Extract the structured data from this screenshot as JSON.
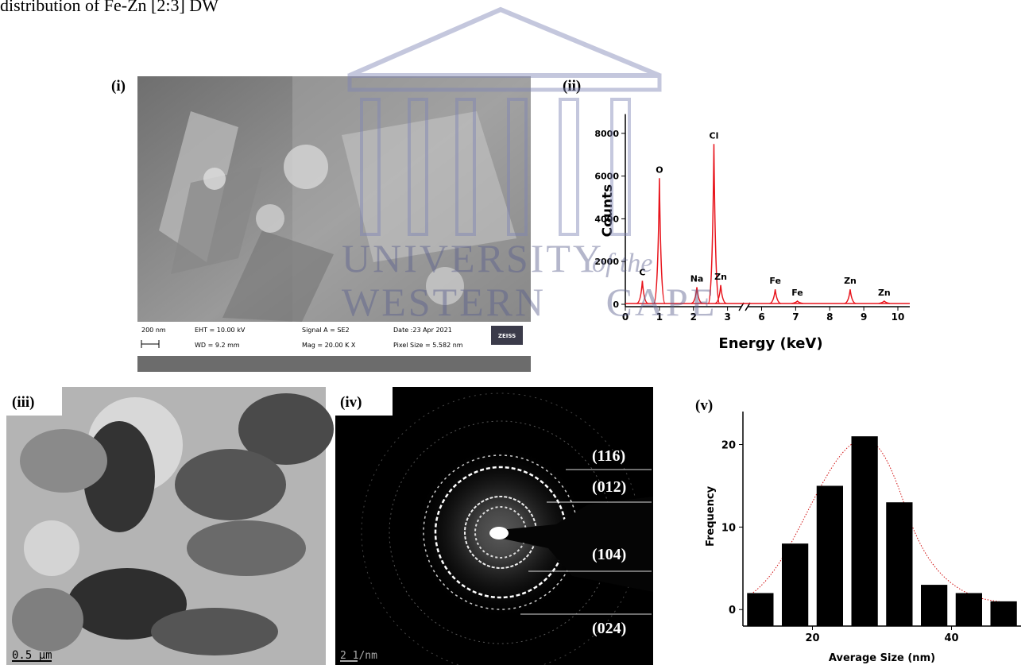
{
  "caption": "distribution of Fe-Zn [2:3] DW",
  "watermark": {
    "line1": "UNIVERSITY",
    "line1_suffix": "of the",
    "line2": "WESTERN CAPE"
  },
  "panels": {
    "i": {
      "label": "(i)",
      "scale_bar": "200 nm",
      "eht": "EHT = 10.00 kV",
      "wd": "WD = 9.2 mm",
      "signal": "Signal A = SE2",
      "mag": "Mag =   20.00 K X",
      "date": "Date :23 Apr 2021",
      "pixel_size": "Pixel Size = 5.582 nm",
      "logo": "ZEISS"
    },
    "iii": {
      "label": "(iii)",
      "scale_bar": "0.5 µm"
    },
    "iv": {
      "label": "(iv)",
      "scale_bar": "2 1/nm",
      "planes": [
        "(116)",
        "(012)",
        "(104)",
        "(024)"
      ]
    }
  },
  "chart_data": [
    {
      "type": "spectrum",
      "panel_label": "(ii)",
      "xlabel": "Energy (keV)",
      "ylabel": "Counts",
      "x": [
        0.5,
        1.0,
        2.1,
        2.6,
        2.8,
        6.4,
        7.05,
        8.6,
        9.6
      ],
      "values": [
        1100,
        5900,
        800,
        7500,
        900,
        700,
        150,
        700,
        150
      ],
      "peak_labels": [
        "C",
        "O",
        "Na",
        "Cl",
        "Zn",
        "Fe",
        "Fe",
        "Zn",
        "Zn"
      ],
      "color": "#e8141c",
      "xlim": [
        0,
        10.35
      ],
      "x_break": [
        3.5,
        5.5
      ],
      "xticks": [
        0,
        1,
        2,
        3,
        6,
        7,
        8,
        9,
        10
      ],
      "ylim": [
        0,
        8900
      ],
      "yticks": [
        0,
        2000,
        4000,
        6000,
        8000
      ]
    },
    {
      "type": "histogram",
      "panel_label": "(v)",
      "xlabel": "Average Size (nm)",
      "ylabel": "Frequency",
      "bins": [
        10,
        15,
        20,
        25,
        30,
        35,
        40,
        45,
        50
      ],
      "values": [
        2,
        8,
        15,
        21,
        13,
        3,
        2,
        1
      ],
      "color": "#000000",
      "xlim": [
        10,
        50
      ],
      "ylim": [
        -2,
        24
      ],
      "xticks": [
        20,
        40
      ],
      "yticks": [
        0,
        10,
        20
      ]
    }
  ]
}
